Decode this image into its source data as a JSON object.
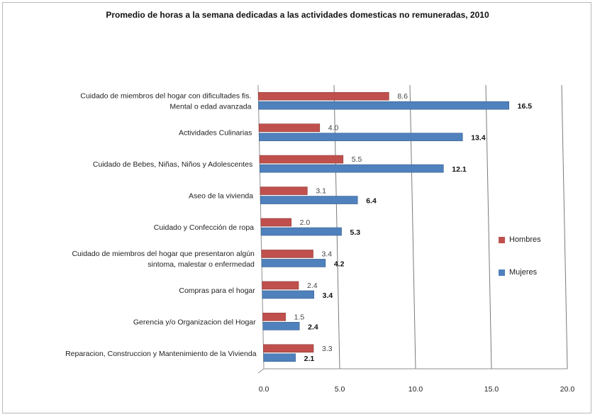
{
  "chart_data": {
    "type": "bar",
    "orientation": "horizontal",
    "title": "Promedio de horas a la semana dedicadas a las actividades domesticas no remuneradas, 2010",
    "categories": [
      [
        "Cuidado de miembros del hogar con dificultades fis.",
        "Mental o edad avanzada"
      ],
      [
        "Actividades Culinarias"
      ],
      [
        "Cuidado de Bebes, Niñas, Niños y Adolescentes"
      ],
      [
        "Aseo de la vivienda"
      ],
      [
        "Cuidado y Confección de ropa"
      ],
      [
        "Cuidado de miembros del hogar que presentaron algún",
        "sintoma, malestar o enfermedad"
      ],
      [
        "Compras para el hogar"
      ],
      [
        "Gerencia y/o Organizacion del Hogar"
      ],
      [
        "Reparacion, Construccion y Mantenimiento de la Vivienda"
      ]
    ],
    "series": [
      {
        "name": "Hombres",
        "color": "#c0504d",
        "values": [
          8.6,
          4.0,
          5.5,
          3.1,
          2.0,
          3.4,
          2.4,
          1.5,
          3.3
        ],
        "labels": [
          "8.6",
          "4.0",
          "5.5",
          "3.1",
          "2.0",
          "3.4",
          "2.4",
          "1.5",
          "3.3"
        ]
      },
      {
        "name": "Mujeres",
        "color": "#4f81bd",
        "values": [
          16.5,
          13.4,
          12.1,
          6.4,
          5.3,
          4.2,
          3.4,
          2.4,
          2.1
        ],
        "labels": [
          "16.5",
          "13.4",
          "12.1",
          "6.4",
          "5.3",
          "4.2",
          "3.4",
          "2.4",
          "2.1"
        ]
      }
    ],
    "xlim": [
      0,
      20
    ],
    "xticks": [
      "0.0",
      "5.0",
      "10.0",
      "15.0",
      "20.0"
    ],
    "grid": true,
    "legend_position": "right"
  }
}
